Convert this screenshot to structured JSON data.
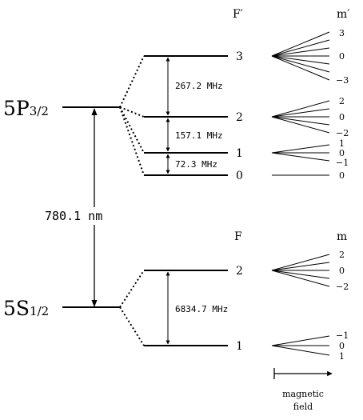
{
  "excited": {
    "label_main": "5P",
    "label_sub": "3/2",
    "col_f": "F′",
    "col_m": "m′",
    "levels": [
      {
        "f": "3",
        "m": [
          "3",
          "0",
          "−3"
        ]
      },
      {
        "f": "2",
        "m": [
          "2",
          "0",
          "−2"
        ]
      },
      {
        "f": "1",
        "m": [
          "1",
          "0",
          "−1"
        ]
      },
      {
        "f": "0",
        "m": [
          "0"
        ]
      }
    ],
    "splittings": [
      "267.2 MHz",
      "157.1 MHz",
      "72.3 MHz"
    ]
  },
  "ground": {
    "label_main": "5S",
    "label_sub": "1/2",
    "col_f": "F",
    "col_m": "m",
    "levels": [
      {
        "f": "2",
        "m": [
          "2",
          "0",
          "−2"
        ]
      },
      {
        "f": "1",
        "m": [
          "−1",
          "0",
          "1"
        ]
      }
    ],
    "splittings": [
      "6834.7 MHz"
    ]
  },
  "transition": "780.1 nm",
  "field_axis": {
    "line1": "magnetic",
    "line2": "field"
  }
}
